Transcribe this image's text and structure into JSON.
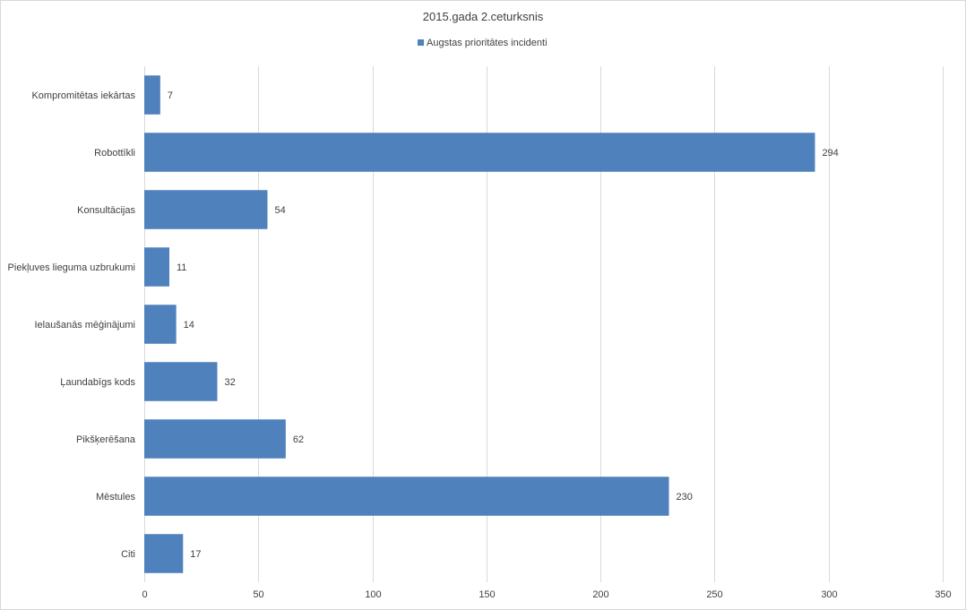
{
  "chart_data": {
    "type": "bar",
    "orientation": "horizontal",
    "title": "2015.gada 2.ceturksnis",
    "categories": [
      "Kompromitētas iekārtas",
      "Robottīkli",
      "Konsultācijas",
      "Piekļuves lieguma uzbrukumi",
      "Ielaušanās mēģinājumi",
      "Ļaundabīgs kods",
      "Pikšķerēšana",
      "Mēstules",
      "Citi"
    ],
    "series": [
      {
        "name": "Augstas prioritātes incidenti",
        "values": [
          7,
          294,
          54,
          11,
          14,
          32,
          62,
          230,
          17
        ],
        "color": "#4f81bd"
      }
    ],
    "x_ticks": [
      "0",
      "50",
      "100",
      "150",
      "200",
      "250",
      "300",
      "350"
    ],
    "xlim": [
      0,
      350
    ],
    "grid": true,
    "legend_position": "top",
    "data_labels": true
  }
}
